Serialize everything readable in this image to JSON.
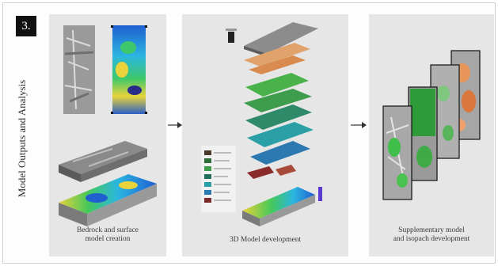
{
  "step_number": "3.",
  "section_title": "Model Outputs and Analysis",
  "panels": [
    {
      "caption_line1": "Bedrock and surface",
      "caption_line2": "model creation"
    },
    {
      "caption_line1": "3D Model development",
      "caption_line2": ""
    },
    {
      "caption_line1": "Supplementary model",
      "caption_line2": "and isopach development"
    }
  ],
  "icons": [
    "right-arrow-icon",
    "right-arrow-icon"
  ],
  "colors": {
    "panel_bg": "#e6e6e6",
    "badge_bg": "#111111",
    "arrow": "#333333"
  }
}
